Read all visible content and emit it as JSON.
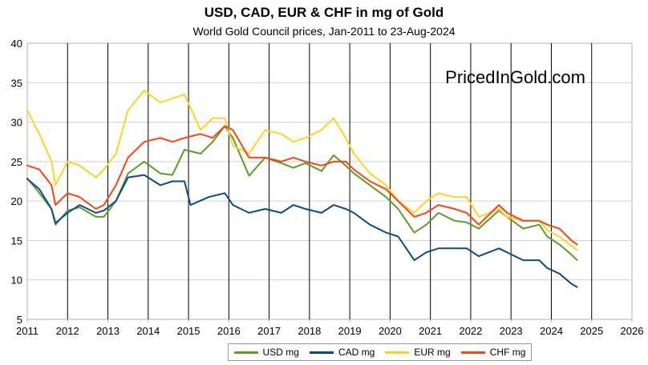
{
  "colors": {
    "usd": "#5b9e26",
    "cad": "#0b4a8a",
    "eur": "#ffd320",
    "chf": "#ff420e"
  },
  "chart_data": {
    "type": "line",
    "title": "USD, CAD, EUR & CHF in mg of Gold",
    "subtitle": "World Gold Council prices, Jan-2011 to 23-Aug-2024",
    "watermark": "PricedInGold.com",
    "xlim": [
      2011,
      2026
    ],
    "ylim": [
      5,
      40
    ],
    "x_ticks": [
      "2011",
      "2012",
      "2013",
      "2014",
      "2015",
      "2016",
      "2017",
      "2018",
      "2019",
      "2020",
      "2021",
      "2022",
      "2023",
      "2024",
      "2025",
      "2026"
    ],
    "y_ticks": [
      "5",
      "10",
      "15",
      "20",
      "25",
      "30",
      "35",
      "40"
    ],
    "grid": "vertical yearly lines, horizontal light lines",
    "legend_position": "bottom",
    "series": [
      {
        "name": "USD mg",
        "color_key": "usd",
        "x": [
          2011,
          2011.3,
          2011.6,
          2011.7,
          2012,
          2012.3,
          2012.7,
          2012.9,
          2013.2,
          2013.5,
          2013.9,
          2014.3,
          2014.6,
          2014.9,
          2015.3,
          2015.6,
          2015.9,
          2016.1,
          2016.5,
          2016.9,
          2017.3,
          2017.6,
          2017.9,
          2018.3,
          2018.6,
          2018.9,
          2019.1,
          2019.5,
          2019.9,
          2020.2,
          2020.6,
          2020.9,
          2021.2,
          2021.6,
          2021.9,
          2022.2,
          2022.7,
          2022.9,
          2023.3,
          2023.7,
          2023.9,
          2024.2,
          2024.5,
          2024.64
        ],
        "y": [
          22.9,
          21,
          19,
          17,
          18.8,
          19.2,
          18,
          18,
          20,
          23.5,
          25,
          23.5,
          23.3,
          26.5,
          26,
          27.5,
          29.5,
          28,
          23.2,
          25.5,
          24.8,
          24.2,
          24.8,
          23.8,
          25.8,
          24.5,
          23.5,
          22,
          20.5,
          19,
          16,
          17,
          18.5,
          17.5,
          17.3,
          16.5,
          18.8,
          18,
          16.5,
          17,
          15.5,
          14.5,
          13.2,
          12.5
        ]
      },
      {
        "name": "CAD mg",
        "color_key": "cad",
        "x": [
          2011,
          2011.3,
          2011.6,
          2011.7,
          2012,
          2012.3,
          2012.7,
          2012.9,
          2013.2,
          2013.5,
          2013.9,
          2014.3,
          2014.6,
          2014.9,
          2015.05,
          2015.5,
          2015.9,
          2016.1,
          2016.5,
          2016.9,
          2017.3,
          2017.6,
          2017.9,
          2018.3,
          2018.6,
          2018.9,
          2019.1,
          2019.5,
          2019.9,
          2020.2,
          2020.6,
          2020.9,
          2021.2,
          2021.6,
          2021.9,
          2022.2,
          2022.7,
          2022.9,
          2023.3,
          2023.7,
          2023.9,
          2024.2,
          2024.5,
          2024.64
        ],
        "y": [
          22.8,
          21.5,
          19,
          17.2,
          18.5,
          19.5,
          18.5,
          18.8,
          20,
          23,
          23.3,
          22,
          22.5,
          22.5,
          19.5,
          20.5,
          21,
          19.5,
          18.5,
          19,
          18.5,
          19.5,
          19,
          18.5,
          19.5,
          19,
          18.5,
          17,
          16,
          15.5,
          12.5,
          13.5,
          14,
          14,
          14,
          13,
          14,
          13.5,
          12.5,
          12.5,
          11.5,
          10.8,
          9.5,
          9.1
        ]
      },
      {
        "name": "EUR mg",
        "color_key": "eur",
        "x": [
          2011,
          2011.3,
          2011.6,
          2011.7,
          2012,
          2012.3,
          2012.7,
          2012.9,
          2013.2,
          2013.5,
          2013.9,
          2014.3,
          2014.6,
          2014.9,
          2015.3,
          2015.6,
          2015.9,
          2016.1,
          2016.5,
          2016.9,
          2017.3,
          2017.6,
          2017.9,
          2018.3,
          2018.6,
          2018.9,
          2019.1,
          2019.5,
          2019.9,
          2020.2,
          2020.6,
          2020.9,
          2021.2,
          2021.6,
          2021.9,
          2022.2,
          2022.7,
          2022.9,
          2023.3,
          2023.7,
          2023.9,
          2024.2,
          2024.5,
          2024.64
        ],
        "y": [
          31.5,
          28.5,
          25,
          22,
          25,
          24.5,
          23,
          24,
          26,
          31.5,
          34,
          32.5,
          33,
          33.5,
          29,
          30.5,
          30.5,
          27,
          26,
          29,
          28.5,
          27.5,
          28,
          29,
          30.5,
          28,
          26,
          23.5,
          22,
          20,
          18.5,
          20,
          21,
          20.5,
          20.5,
          18,
          19,
          18,
          17.5,
          17.5,
          16.3,
          15.5,
          14.3,
          13.8
        ]
      },
      {
        "name": "CHF mg",
        "color_key": "chf",
        "x": [
          2011,
          2011.3,
          2011.6,
          2011.7,
          2012,
          2012.3,
          2012.7,
          2012.9,
          2013.2,
          2013.5,
          2013.9,
          2014.3,
          2014.6,
          2014.9,
          2015.3,
          2015.6,
          2015.9,
          2016.1,
          2016.5,
          2016.9,
          2017.3,
          2017.6,
          2017.9,
          2018.3,
          2018.6,
          2018.9,
          2019.1,
          2019.5,
          2019.9,
          2020.2,
          2020.6,
          2020.9,
          2021.2,
          2021.6,
          2021.9,
          2022.2,
          2022.7,
          2022.9,
          2023.3,
          2023.7,
          2023.9,
          2024.2,
          2024.5,
          2024.64
        ],
        "y": [
          24.5,
          24,
          22,
          19.5,
          21,
          20.5,
          19,
          19.5,
          22,
          25.5,
          27.5,
          28,
          27.5,
          28,
          28.5,
          28,
          29.5,
          29,
          25.5,
          25.5,
          25,
          25.5,
          25,
          24.5,
          25,
          25,
          24,
          22.5,
          21.5,
          20,
          18,
          18.5,
          19.5,
          19,
          18.5,
          17,
          19.5,
          18.5,
          17.5,
          17.5,
          17,
          16.5,
          15,
          14.5
        ]
      }
    ]
  }
}
